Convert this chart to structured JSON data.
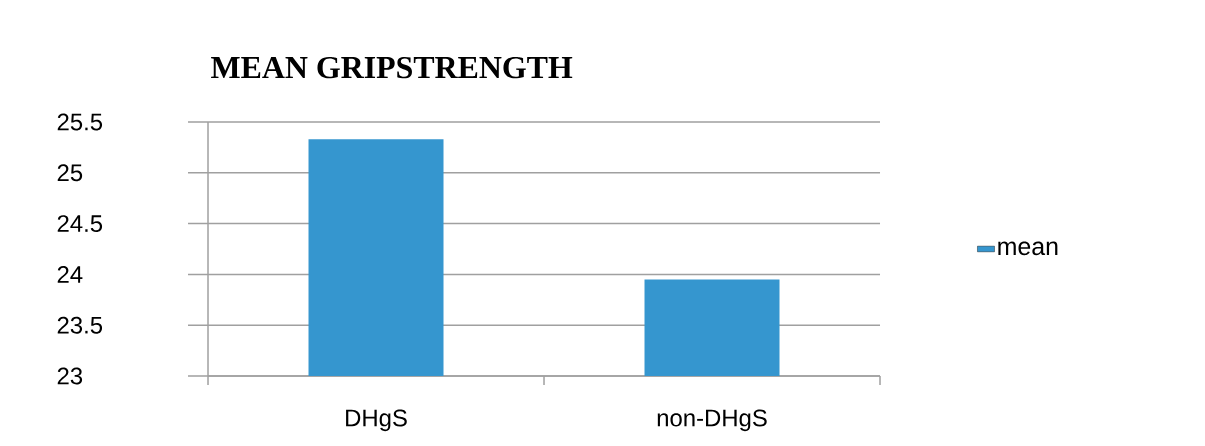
{
  "chart_data": {
    "type": "bar",
    "title": "MEAN GRIPSTRENGTH",
    "categories": [
      "DHgS",
      "non-DHgS"
    ],
    "series": [
      {
        "name": "mean",
        "color": "#3596cf",
        "values": [
          25.33,
          23.95
        ]
      }
    ],
    "ylim": [
      23,
      25.5
    ],
    "yticks": [
      23,
      23.5,
      24,
      24.5,
      25,
      25.5
    ],
    "grid": "y",
    "legend": "right"
  }
}
